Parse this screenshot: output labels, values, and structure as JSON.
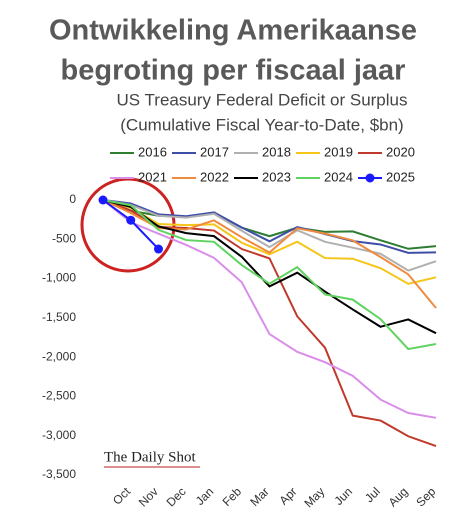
{
  "title": "Ontwikkeling Amerikaanse begroting per fiscaal jaar",
  "title_lines": [
    "Ontwikkeling Amerikaanse",
    "begroting per fiscaal jaar"
  ],
  "chart_data": {
    "type": "line",
    "title": "US Treasury Federal Deficit or Surplus",
    "subtitle": "(Cumulative Fiscal Year-to-Date, $bn)",
    "categories": [
      null,
      "Oct",
      "Nov",
      "Dec",
      "Jan",
      "Feb",
      "Mar",
      "Apr",
      "May",
      "Jun",
      "Jul",
      "Aug",
      "Sep"
    ],
    "ylim": [
      -3500,
      0
    ],
    "yticks": [
      0,
      -500,
      {
        "value": -1000,
        "label": "-1,000"
      },
      {
        "value": -1500,
        "label": "-1,500"
      },
      {
        "value": -2000,
        "label": "-2,000"
      },
      {
        "value": -2500,
        "label": "-2,500"
      },
      {
        "value": -3000,
        "label": "-3,000"
      },
      {
        "value": -3500,
        "label": "-3,500"
      }
    ],
    "source": "The Daily Shot",
    "series": [
      {
        "name": "2016",
        "color": "#2e7d32",
        "values": [
          0,
          -136,
          -200,
          -214,
          -159,
          -352,
          -460,
          -353,
          -405,
          -400,
          -513,
          -621,
          -587
        ]
      },
      {
        "name": "2017",
        "color": "#3f4fa8",
        "values": [
          0,
          -45,
          -183,
          -207,
          -158,
          -350,
          -526,
          -344,
          -433,
          -523,
          -566,
          -673,
          -666
        ]
      },
      {
        "name": "2018",
        "color": "#b0b0b0",
        "values": [
          0,
          -63,
          -201,
          -224,
          -175,
          -391,
          -600,
          -385,
          -532,
          -607,
          -684,
          -898,
          -779
        ]
      },
      {
        "name": "2019",
        "color": "#f5c518",
        "values": [
          0,
          -100,
          -305,
          -319,
          -310,
          -544,
          -691,
          -531,
          -739,
          -747,
          -867,
          -1067,
          -984
        ]
      },
      {
        "name": "2020",
        "color": "#c0392b",
        "values": [
          0,
          -134,
          -343,
          -357,
          -389,
          -624,
          -743,
          -1481,
          -1880,
          -2744,
          -2807,
          -3007,
          -3132
        ]
      },
      {
        "name": "2021",
        "color": "#d98ee8",
        "values": [
          0,
          -284,
          -429,
          -572,
          -736,
          -1047,
          -1706,
          -1932,
          -2064,
          -2238,
          -2540,
          -2711,
          -2772
        ]
      },
      {
        "name": "2022",
        "color": "#f08a3c",
        "values": [
          0,
          -165,
          -357,
          -375,
          -259,
          -475,
          -668,
          -360,
          -426,
          -515,
          -726,
          -946,
          -1375
        ]
      },
      {
        "name": "2023",
        "color": "#000000",
        "values": [
          0,
          -88,
          -336,
          -421,
          -460,
          -723,
          -1100,
          -925,
          -1165,
          -1393,
          -1613,
          -1520,
          -1695
        ]
      },
      {
        "name": "2024",
        "color": "#5fd35f",
        "values": [
          0,
          -67,
          -381,
          -510,
          -532,
          -828,
          -1065,
          -855,
          -1202,
          -1268,
          -1516,
          -1897,
          -1833
        ]
      },
      {
        "name": "2025",
        "color": "#1a1aff",
        "markers": true,
        "values": [
          0,
          -257,
          -624,
          null,
          null,
          null,
          null,
          null,
          null,
          null,
          null,
          null,
          null
        ]
      }
    ]
  }
}
